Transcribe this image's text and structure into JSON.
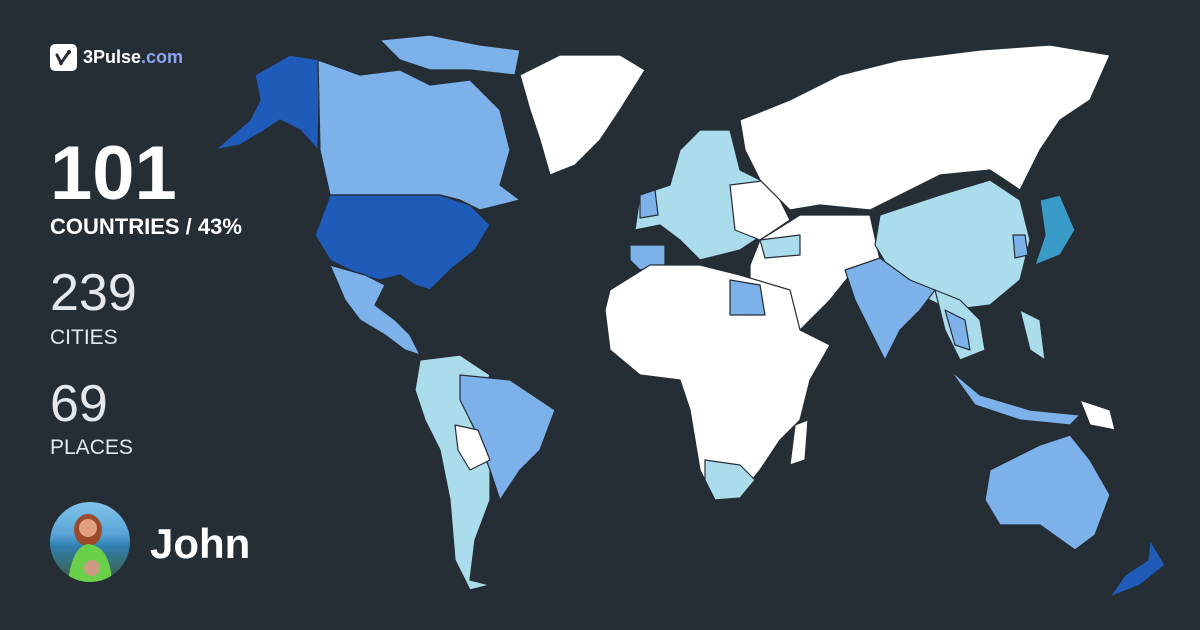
{
  "brand": {
    "name": "3Pulse",
    "domain": ".com",
    "icon": "pulse-check-icon"
  },
  "stats": {
    "countries": {
      "value": "101",
      "label": "COUNTRIES / 43%"
    },
    "cities": {
      "value": "239",
      "label": "CITIES"
    },
    "places": {
      "value": "69",
      "label": "PLACES"
    }
  },
  "user": {
    "name": "John"
  },
  "map": {
    "colors": {
      "background": "#252d35",
      "unvisited": "#ffffff",
      "light": "#aadcec",
      "medium": "#7cb1ea",
      "dark": "#1f5bb8",
      "teal": "#3a9ac8"
    }
  }
}
